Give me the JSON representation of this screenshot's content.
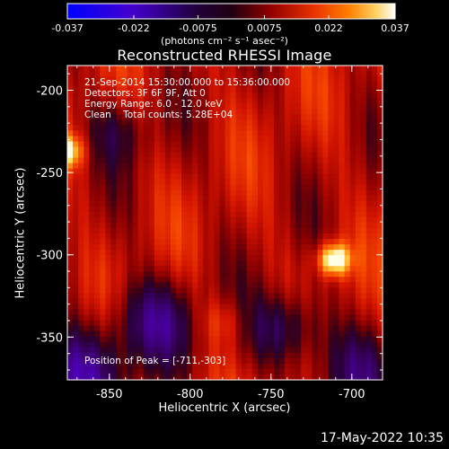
{
  "title": "Reconstructed RHESSI Image",
  "colorbar": {
    "ticks": [
      "-0.037",
      "-0.022",
      "-0.0075",
      "0.0075",
      "0.022",
      "0.037"
    ],
    "units_label": "(photons cm⁻² s⁻¹ asec⁻²)",
    "range": [
      -0.037,
      0.037
    ],
    "colormap": [
      "#0000ff",
      "#5a00b0",
      "#200040",
      "#2a0018",
      "#8a0000",
      "#e02000",
      "#ff7000",
      "#ffc040",
      "#ffffe0"
    ]
  },
  "info_lines": [
    "21-Sep-2014 15:30:00.000 to 15:36:00.000",
    "Detectors: 3F 6F 9F, Att 0",
    "Energy Range: 6.0 - 12.0 keV",
    "Clean    Total counts: 5.28E+04"
  ],
  "peak_label": "Position of Peak = [-711,-303]",
  "x_axis": {
    "label": "Heliocentric X (arcsec)",
    "ticks": [
      "-850",
      "-800",
      "-750",
      "-700"
    ],
    "tick_values": [
      -850,
      -800,
      -750,
      -700
    ],
    "range": [
      -876,
      -681
    ]
  },
  "y_axis": {
    "label": "Heliocentric Y (arcsec)",
    "ticks": [
      "-200",
      "-250",
      "-300",
      "-350"
    ],
    "tick_values": [
      -200,
      -250,
      -300,
      -350
    ],
    "range": [
      -376,
      -185
    ]
  },
  "footer_date": "17-May-2022 10:35",
  "image_features": {
    "peaks": [
      {
        "x": -711,
        "y": -303,
        "intensity": 1.0
      },
      {
        "x": -876,
        "y": -237,
        "intensity": 0.75
      }
    ]
  }
}
